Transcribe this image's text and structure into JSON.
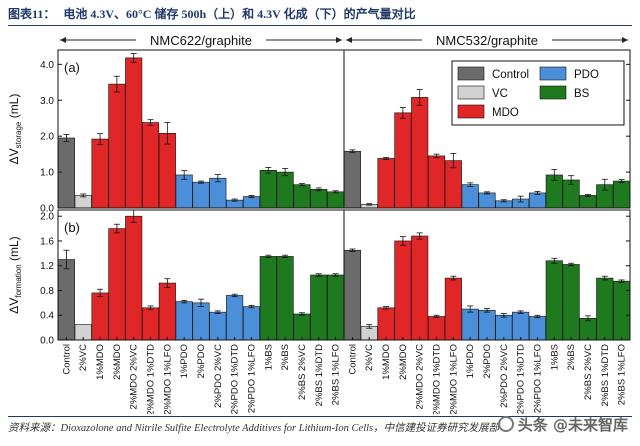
{
  "caption": {
    "figure_label": "图表11：",
    "text": "电池 4.3V、60°C 储存 500h（上）和 4.3V 化成（下）的产气量对比"
  },
  "source": "资料来源：Dioxazolone and Nitrile Sulfite Electrolyte Additives for Lithium-Ion Cells，中信建投证券研究发展部",
  "watermark": "头条 @未来智库",
  "chart_data": {
    "type": "bar",
    "groups": [
      {
        "title": "NMC622/graphite"
      },
      {
        "title": "NMC532/graphite"
      }
    ],
    "legend": [
      {
        "name": "Control",
        "color": "#6b6b6b"
      },
      {
        "name": "VC",
        "color": "#d2d2d2"
      },
      {
        "name": "MDO",
        "color": "#e02626"
      },
      {
        "name": "PDO",
        "color": "#4a8fd8"
      },
      {
        "name": "BS",
        "color": "#1f7a1f"
      }
    ],
    "categories": [
      "Control",
      "2%VC",
      "1%MDO",
      "2%MDO",
      "2%MDO 2%VC",
      "2%MDO 1%DTD",
      "2%MDO 1%LFO",
      "1%PDO",
      "2%PDO",
      "2%PDO 2%VC",
      "2%PDO 1%DTD",
      "2%PDO 1%LFO",
      "1%BS",
      "2%BS",
      "2%BS 2%VC",
      "2%BS 1%DTD",
      "2%BS 1%LFO"
    ],
    "category_colors": [
      "#6b6b6b",
      "#d2d2d2",
      "#e02626",
      "#e02626",
      "#e02626",
      "#e02626",
      "#e02626",
      "#4a8fd8",
      "#4a8fd8",
      "#4a8fd8",
      "#4a8fd8",
      "#4a8fd8",
      "#1f7a1f",
      "#1f7a1f",
      "#1f7a1f",
      "#1f7a1f",
      "#1f7a1f"
    ],
    "panels": [
      {
        "label": "(a)",
        "ylabel": "ΔV",
        "ylabel_sub": "storage",
        "ylabel_unit": " (mL)",
        "ylim": [
          0,
          4.4
        ],
        "yticks": [
          0.0,
          1.0,
          2.0,
          3.0,
          4.0
        ],
        "yticklabels": [
          "0.0",
          "1.0",
          "2.0",
          "3.0",
          "4.0"
        ],
        "series": [
          {
            "group": "NMC622/graphite",
            "values": [
              1.95,
              0.35,
              1.92,
              3.45,
              4.18,
              2.38,
              2.08,
              0.92,
              0.72,
              0.83,
              0.22,
              0.32,
              1.05,
              1.0,
              0.65,
              0.52,
              0.45
            ],
            "errors": [
              0.1,
              0.04,
              0.15,
              0.22,
              0.12,
              0.08,
              0.3,
              0.12,
              0.03,
              0.1,
              0.03,
              0.03,
              0.08,
              0.1,
              0.03,
              0.04,
              0.03
            ]
          },
          {
            "group": "NMC532/graphite",
            "values": [
              1.58,
              0.1,
              1.38,
              2.65,
              3.08,
              1.45,
              1.32,
              0.65,
              0.42,
              0.2,
              0.25,
              0.42,
              0.92,
              0.78,
              0.35,
              0.65,
              0.75
            ],
            "errors": [
              0.04,
              0.02,
              0.03,
              0.15,
              0.22,
              0.05,
              0.2,
              0.05,
              0.03,
              0.03,
              0.08,
              0.04,
              0.15,
              0.12,
              0.03,
              0.15,
              0.04
            ]
          }
        ]
      },
      {
        "label": "(b)",
        "ylabel": "ΔV",
        "ylabel_sub": "formation",
        "ylabel_unit": " (mL)",
        "ylim": [
          0,
          2.1
        ],
        "yticks": [
          0.0,
          0.4,
          0.8,
          1.2,
          1.6,
          2.0
        ],
        "yticklabels": [
          "0.0",
          "0.4",
          "0.8",
          "1.2",
          "1.6",
          "2.0"
        ],
        "series": [
          {
            "group": "NMC622/graphite",
            "values": [
              1.3,
              0.25,
              0.76,
              1.8,
              2.0,
              0.52,
              0.92,
              0.62,
              0.6,
              0.45,
              0.72,
              0.54,
              1.35,
              1.35,
              0.42,
              1.05,
              1.05
            ],
            "errors": [
              0.15,
              0.0,
              0.06,
              0.07,
              0.1,
              0.03,
              0.07,
              0.02,
              0.06,
              0.02,
              0.02,
              0.02,
              0.02,
              0.02,
              0.02,
              0.02,
              0.02
            ]
          },
          {
            "group": "NMC532/graphite",
            "values": [
              1.45,
              0.22,
              0.52,
              1.6,
              1.68,
              0.38,
              1.0,
              0.5,
              0.48,
              0.4,
              0.45,
              0.38,
              1.28,
              1.22,
              0.35,
              1.0,
              0.95
            ],
            "errors": [
              0.02,
              0.03,
              0.02,
              0.07,
              0.05,
              0.02,
              0.03,
              0.05,
              0.03,
              0.03,
              0.02,
              0.02,
              0.04,
              0.02,
              0.04,
              0.03,
              0.02
            ]
          }
        ]
      }
    ]
  }
}
